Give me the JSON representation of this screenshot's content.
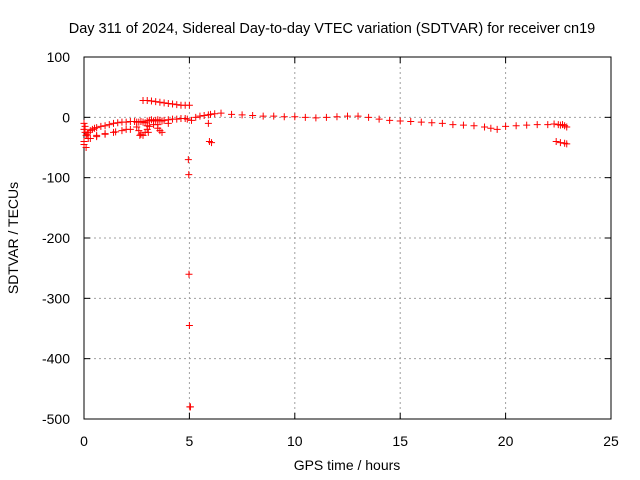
{
  "chart_data": {
    "type": "scatter",
    "title": "Day 311 of 2024, Sidereal Day-to-day VTEC variation (SDTVAR) for receiver cn19",
    "xlabel": "GPS time / hours",
    "ylabel": "SDTVAR / TECUs",
    "xlim": [
      0,
      25
    ],
    "ylim": [
      -500,
      100
    ],
    "xticks": [
      "0",
      "5",
      "10",
      "15",
      "20",
      "25"
    ],
    "yticks": [
      "100",
      "0",
      "-100",
      "-200",
      "-300",
      "-400",
      "-500"
    ],
    "xtick_values": [
      0,
      5,
      10,
      15,
      20,
      25
    ],
    "ytick_values": [
      100,
      0,
      -100,
      -200,
      -300,
      -400,
      -500
    ],
    "grid": true,
    "marker": "+",
    "color": "#ff0000",
    "series": [
      {
        "name": "SDTVAR",
        "x": [
          0.0,
          0.05,
          0.1,
          0.15,
          0.2,
          0.3,
          0.4,
          0.5,
          0.6,
          0.8,
          1.0,
          1.2,
          1.4,
          1.6,
          1.8,
          2.0,
          2.2,
          2.4,
          2.5,
          2.6,
          2.7,
          2.8,
          2.9,
          3.0,
          3.1,
          3.2,
          3.3,
          3.4,
          3.5,
          3.6,
          3.7,
          3.8,
          4.0,
          4.2,
          4.4,
          4.6,
          4.8,
          4.9,
          4.95,
          4.97,
          4.98,
          5.0,
          5.02,
          5.05,
          5.1,
          5.3,
          5.5,
          5.7,
          5.9,
          6.0,
          6.2,
          6.5,
          7.0,
          7.5,
          8.0,
          8.5,
          9.0,
          9.5,
          10.0,
          10.5,
          11.0,
          11.5,
          12.0,
          12.5,
          13.0,
          13.5,
          14.0,
          14.5,
          15.0,
          15.5,
          16.0,
          16.5,
          17.0,
          17.5,
          18.0,
          18.5,
          19.0,
          19.3,
          19.6,
          20.0,
          20.5,
          21.0,
          21.5,
          22.0,
          22.3,
          22.5,
          22.6,
          22.7,
          22.8,
          22.9,
          0.0,
          0.3,
          0.6,
          1.0,
          1.4,
          1.8,
          2.2,
          2.6,
          2.7,
          2.8,
          2.9,
          3.0,
          3.1,
          3.3,
          3.5,
          3.6,
          3.7,
          0.2,
          0.6,
          1.0,
          1.5,
          2.0,
          2.5,
          3.0,
          3.5,
          4.0,
          2.8,
          3.0,
          3.2,
          3.4,
          3.6,
          3.8,
          4.0,
          4.2,
          4.4,
          4.6,
          4.8,
          5.0,
          0.0,
          0.1,
          0.0,
          0.05,
          2.65,
          3.05,
          5.9,
          5.95,
          6.05,
          22.4,
          22.6,
          22.8,
          22.9
        ],
        "y": [
          -20,
          -25,
          -30,
          -28,
          -25,
          -22,
          -20,
          -18,
          -17,
          -15,
          -14,
          -12,
          -10,
          -9,
          -8,
          -8,
          -7,
          -7,
          -8,
          -8,
          -7,
          -8,
          -9,
          -6,
          -5,
          -4,
          -6,
          -5,
          -4,
          -5,
          -6,
          -5,
          -4,
          -3,
          -3,
          -2,
          -2,
          -3,
          -70,
          -95,
          -260,
          -345,
          -480,
          -480,
          -5,
          0,
          2,
          3,
          4,
          5,
          6,
          7,
          5,
          4,
          3,
          2,
          2,
          1,
          1,
          0,
          -1,
          0,
          1,
          2,
          2,
          0,
          -3,
          -5,
          -6,
          -7,
          -8,
          -9,
          -10,
          -12,
          -13,
          -14,
          -16,
          -18,
          -20,
          -15,
          -14,
          -13,
          -12,
          -12,
          -11,
          -12,
          -13,
          -12,
          -14,
          -16,
          -40,
          -35,
          -32,
          -28,
          -25,
          -22,
          -20,
          -22,
          -28,
          -30,
          -25,
          -20,
          -15,
          -12,
          -18,
          -22,
          -25,
          -35,
          -30,
          -27,
          -24,
          -20,
          -16,
          -14,
          -12,
          -10,
          28,
          28,
          27,
          26,
          25,
          24,
          23,
          22,
          21,
          20,
          20,
          20,
          -45,
          -50,
          -10,
          -15,
          -30,
          -25,
          -10,
          -40,
          -42,
          -40,
          -42,
          -43,
          -44
        ]
      }
    ]
  }
}
